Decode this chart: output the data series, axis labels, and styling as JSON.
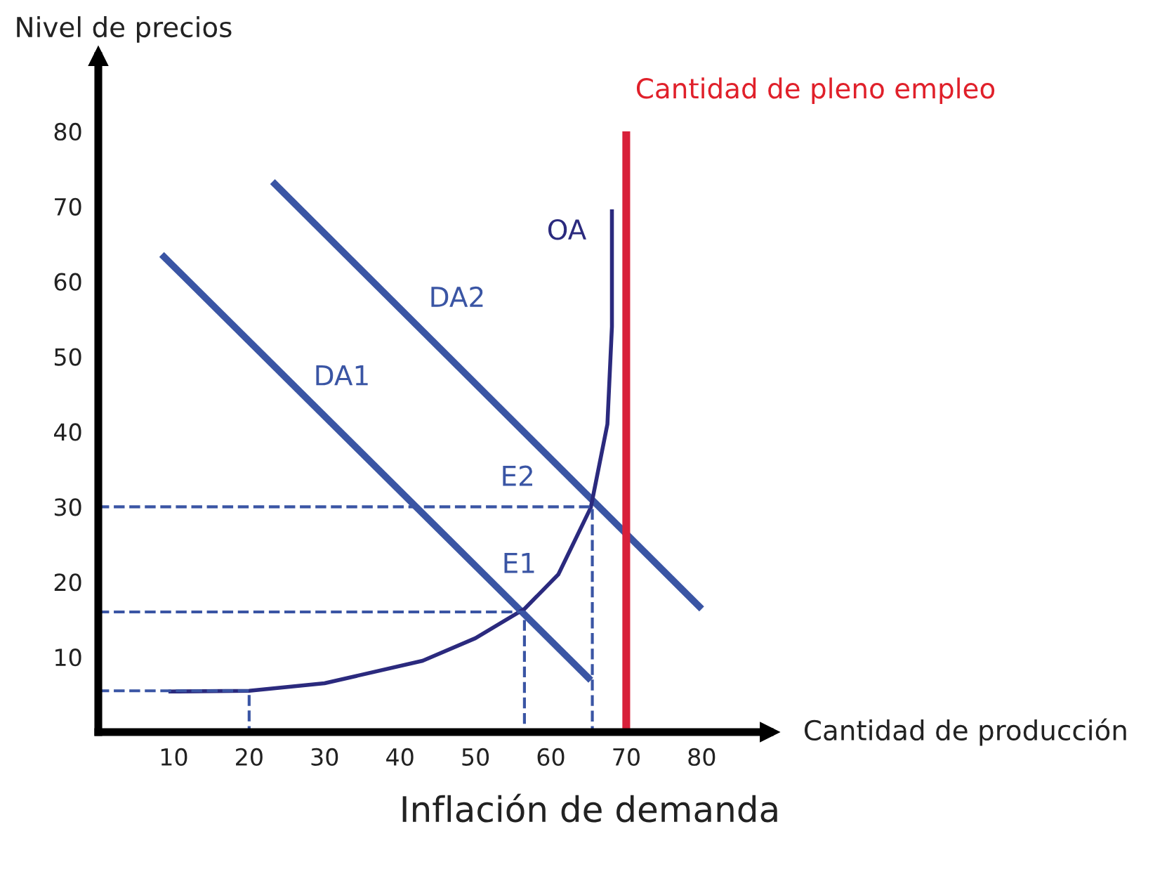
{
  "chart_data": {
    "type": "line",
    "title": "Inflación de demanda",
    "xlabel": "Cantidad de producción",
    "ylabel": "Nivel de precios",
    "xlim": [
      0,
      89
    ],
    "ylim": [
      0,
      90
    ],
    "xticks": [
      10,
      20,
      30,
      40,
      50,
      60,
      70,
      80
    ],
    "yticks": [
      10,
      20,
      30,
      40,
      50,
      60,
      70,
      80
    ],
    "grid": false,
    "legend": false,
    "marker": "none",
    "series": [
      {
        "name": "DA1",
        "color": "#3a55a4",
        "x": [
          8.4,
          65.3
        ],
        "values": [
          63.6,
          6.9
        ],
        "line_style": "solid"
      },
      {
        "name": "DA2",
        "color": "#3a55a4",
        "x": [
          23.1,
          80
        ],
        "values": [
          73.3,
          16.4
        ],
        "line_style": "solid"
      },
      {
        "name": "OA",
        "color": "#2b2a7e",
        "x": [
          9.3,
          20,
          30,
          43,
          50,
          56.5,
          61,
          65.3,
          67.5,
          68.1,
          68.1
        ],
        "values": [
          5.4,
          5.5,
          6.5,
          9.5,
          12.5,
          16.4,
          21,
          29.9,
          41,
          54,
          69.6
        ],
        "line_style": "solid"
      },
      {
        "name": "Cantidad de pleno empleo",
        "color": "#d8203a",
        "x": [
          70,
          70
        ],
        "values": [
          0,
          80
        ],
        "line_style": "solid"
      },
      {
        "color": "#3a55a4",
        "x": [
          0,
          20,
          20
        ],
        "values": [
          5.5,
          5.5,
          0
        ],
        "line_style": "dashed"
      },
      {
        "color": "#3a55a4",
        "x": [
          0,
          56.5,
          56.5
        ],
        "values": [
          16,
          16,
          0
        ],
        "line_style": "dashed"
      },
      {
        "color": "#3a55a4",
        "x": [
          0,
          65.5,
          65.5
        ],
        "values": [
          30,
          30,
          0
        ],
        "line_style": "dashed"
      }
    ],
    "annotations": [
      "E1",
      "E2"
    ]
  }
}
